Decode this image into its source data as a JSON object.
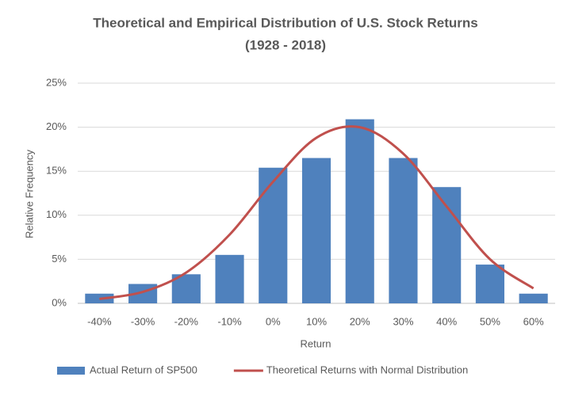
{
  "chart_data": {
    "type": "bar",
    "title": "Theoretical and Empirical Distribution of U.S. Stock Returns",
    "subtitle": "(1928 - 2018)",
    "x_label": "Return",
    "y_label": "Relative Frequency",
    "categories": [
      "-40%",
      "-30%",
      "-20%",
      "-10%",
      "0%",
      "10%",
      "20%",
      "30%",
      "40%",
      "50%",
      "60%"
    ],
    "series": [
      {
        "name": "Actual Return of SP500",
        "type": "bar",
        "color": "#4f81bd",
        "values": [
          1.1,
          2.2,
          3.3,
          5.5,
          15.4,
          16.5,
          20.9,
          16.5,
          13.2,
          4.4,
          1.1
        ]
      },
      {
        "name": "Theoretical Returns with Normal Distribution",
        "type": "line",
        "color": "#c0504d",
        "values": [
          0.5,
          1.3,
          3.5,
          7.8,
          13.8,
          18.8,
          20,
          17,
          11,
          5,
          1.7
        ]
      }
    ],
    "ylim": [
      0,
      25
    ],
    "yticks": [
      {
        "value": 0,
        "label": "0%"
      },
      {
        "value": 5,
        "label": "5%"
      },
      {
        "value": 10,
        "label": "10%"
      },
      {
        "value": 15,
        "label": "15%"
      },
      {
        "value": 20,
        "label": "20%"
      },
      {
        "value": 25,
        "label": "25%"
      }
    ],
    "grid": true,
    "legend": "bottom"
  }
}
